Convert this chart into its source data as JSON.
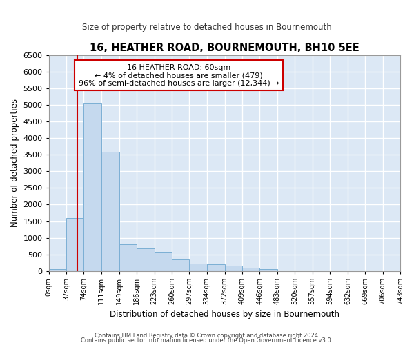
{
  "title": "16, HEATHER ROAD, BOURNEMOUTH, BH10 5EE",
  "subtitle": "Size of property relative to detached houses in Bournemouth",
  "xlabel": "Distribution of detached houses by size in Bournemouth",
  "ylabel": "Number of detached properties",
  "bar_color": "#c5d9ee",
  "bar_edge_color": "#7bafd4",
  "background_color": "#dce8f5",
  "grid_color": "#ffffff",
  "annotation_box_color": "#cc0000",
  "annotation_text": "16 HEATHER ROAD: 60sqm\n← 4% of detached houses are smaller (479)\n96% of semi-detached houses are larger (12,344) →",
  "property_line_x": 60,
  "property_line_color": "#cc0000",
  "bin_edges": [
    0,
    37,
    74,
    111,
    149,
    186,
    223,
    260,
    297,
    334,
    372,
    409,
    446,
    483,
    520,
    557,
    594,
    632,
    669,
    706,
    743
  ],
  "bin_labels": [
    "0sqm",
    "37sqm",
    "74sqm",
    "111sqm",
    "149sqm",
    "186sqm",
    "223sqm",
    "260sqm",
    "297sqm",
    "334sqm",
    "372sqm",
    "409sqm",
    "446sqm",
    "483sqm",
    "520sqm",
    "557sqm",
    "594sqm",
    "632sqm",
    "669sqm",
    "706sqm",
    "743sqm"
  ],
  "bar_heights": [
    50,
    1600,
    5050,
    3600,
    800,
    680,
    580,
    350,
    230,
    210,
    160,
    100,
    50,
    0,
    0,
    0,
    0,
    0,
    0,
    0
  ],
  "ylim": [
    0,
    6500
  ],
  "yticks": [
    0,
    500,
    1000,
    1500,
    2000,
    2500,
    3000,
    3500,
    4000,
    4500,
    5000,
    5500,
    6000,
    6500
  ],
  "footer1": "Contains HM Land Registry data © Crown copyright and database right 2024.",
  "footer2": "Contains public sector information licensed under the Open Government Licence v3.0."
}
